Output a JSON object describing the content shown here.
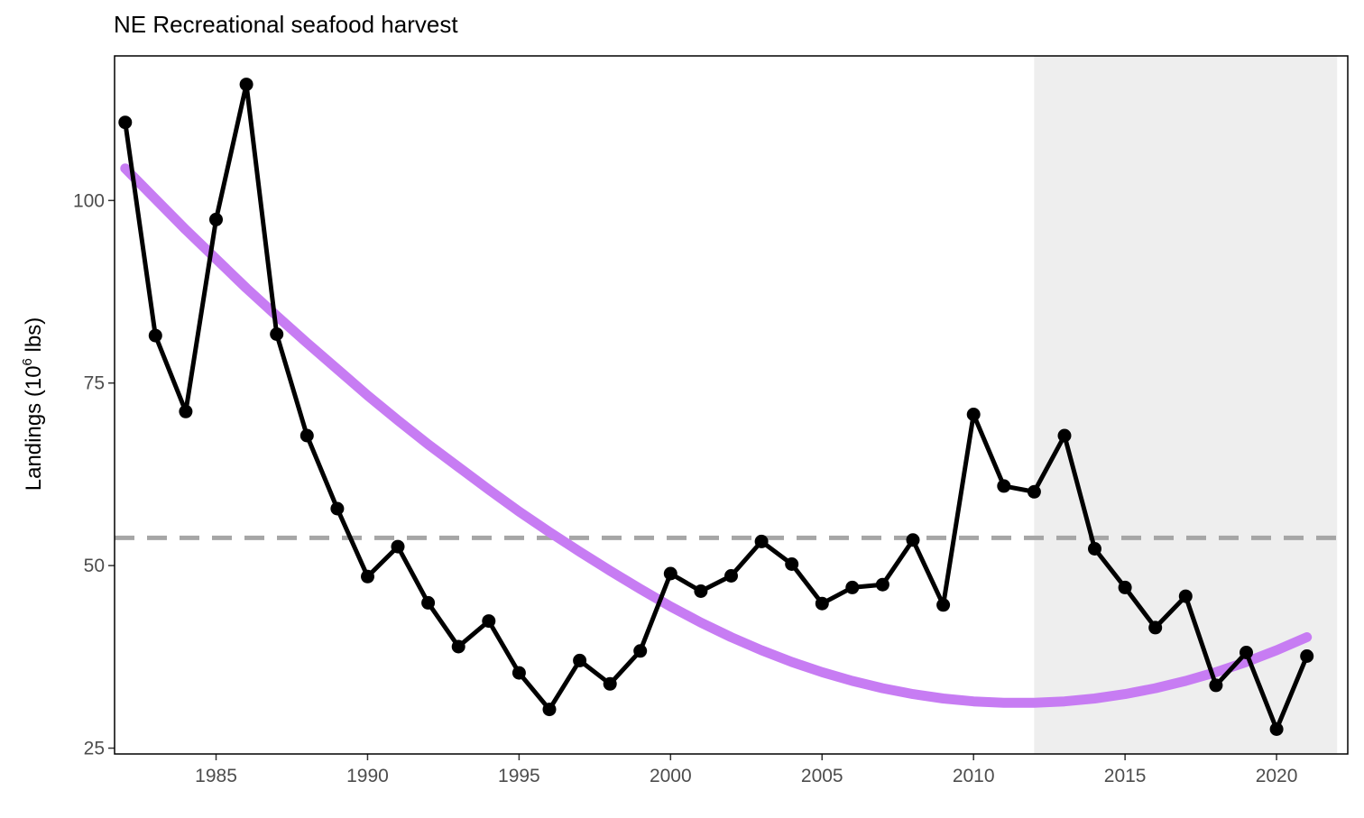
{
  "chart_data": {
    "type": "line",
    "title": "NE Recreational seafood harvest",
    "xlabel": "",
    "ylabel": "Landings (10",
    "ylabel_superscript": "6",
    "ylabel_suffix": " lbs)",
    "xlim": [
      1981.65,
      2022.35
    ],
    "ylim": [
      24.2,
      119.8
    ],
    "x_ticks": [
      1985,
      1990,
      1995,
      2000,
      2005,
      2010,
      2015,
      2020
    ],
    "y_ticks": [
      25,
      50,
      75,
      100
    ],
    "grid": false,
    "shaded_region": {
      "x_start": 2012,
      "x_end": 2022,
      "color": "#eeeeee"
    },
    "reference_line": {
      "y": 53.8,
      "style": "dashed",
      "color": "#a6a6a6"
    },
    "series": [
      {
        "type": "line",
        "color": "#000000",
        "markers": true,
        "x": [
          1982,
          1983,
          1984,
          1985,
          1986,
          1987,
          1988,
          1989,
          1990,
          1991,
          1992,
          1993,
          1994,
          1995,
          1996,
          1997,
          1998,
          1999,
          2000,
          2001,
          2002,
          2003,
          2004,
          2005,
          2006,
          2007,
          2008,
          2009,
          2010,
          2011,
          2012,
          2013,
          2014,
          2015,
          2016,
          2017,
          2018,
          2019,
          2020,
          2021
        ],
        "values": [
          110.7,
          81.5,
          71.1,
          97.4,
          115.9,
          81.7,
          67.8,
          57.8,
          48.5,
          52.6,
          44.9,
          38.9,
          42.4,
          35.3,
          30.3,
          37.0,
          33.8,
          38.3,
          48.9,
          46.5,
          48.6,
          53.3,
          50.2,
          44.8,
          47.0,
          47.4,
          53.5,
          44.6,
          70.7,
          60.9,
          60.1,
          67.8,
          52.3,
          47.0,
          41.5,
          45.8,
          33.6,
          38.1,
          27.6,
          37.6
        ]
      },
      {
        "type": "trend",
        "color": "#c77cf3",
        "x": [
          1982,
          1983,
          1984,
          1985,
          1986,
          1987,
          1988,
          1989,
          1990,
          1991,
          1992,
          1993,
          1994,
          1995,
          1996,
          1997,
          1998,
          1999,
          2000,
          2001,
          2002,
          2003,
          2004,
          2005,
          2006,
          2007,
          2008,
          2009,
          2010,
          2011,
          2012,
          2013,
          2014,
          2015,
          2016,
          2017,
          2018,
          2019,
          2020,
          2021
        ],
        "values": [
          104.4,
          100.2,
          96.0,
          92.0,
          88.0,
          84.2,
          80.5,
          76.9,
          73.3,
          69.9,
          66.6,
          63.5,
          60.4,
          57.4,
          54.6,
          51.9,
          49.3,
          46.8,
          44.4,
          42.2,
          40.2,
          38.4,
          36.8,
          35.4,
          34.2,
          33.2,
          32.4,
          31.8,
          31.4,
          31.2,
          31.2,
          31.4,
          31.8,
          32.4,
          33.2,
          34.2,
          35.4,
          36.8,
          38.4,
          40.2
        ]
      }
    ]
  }
}
